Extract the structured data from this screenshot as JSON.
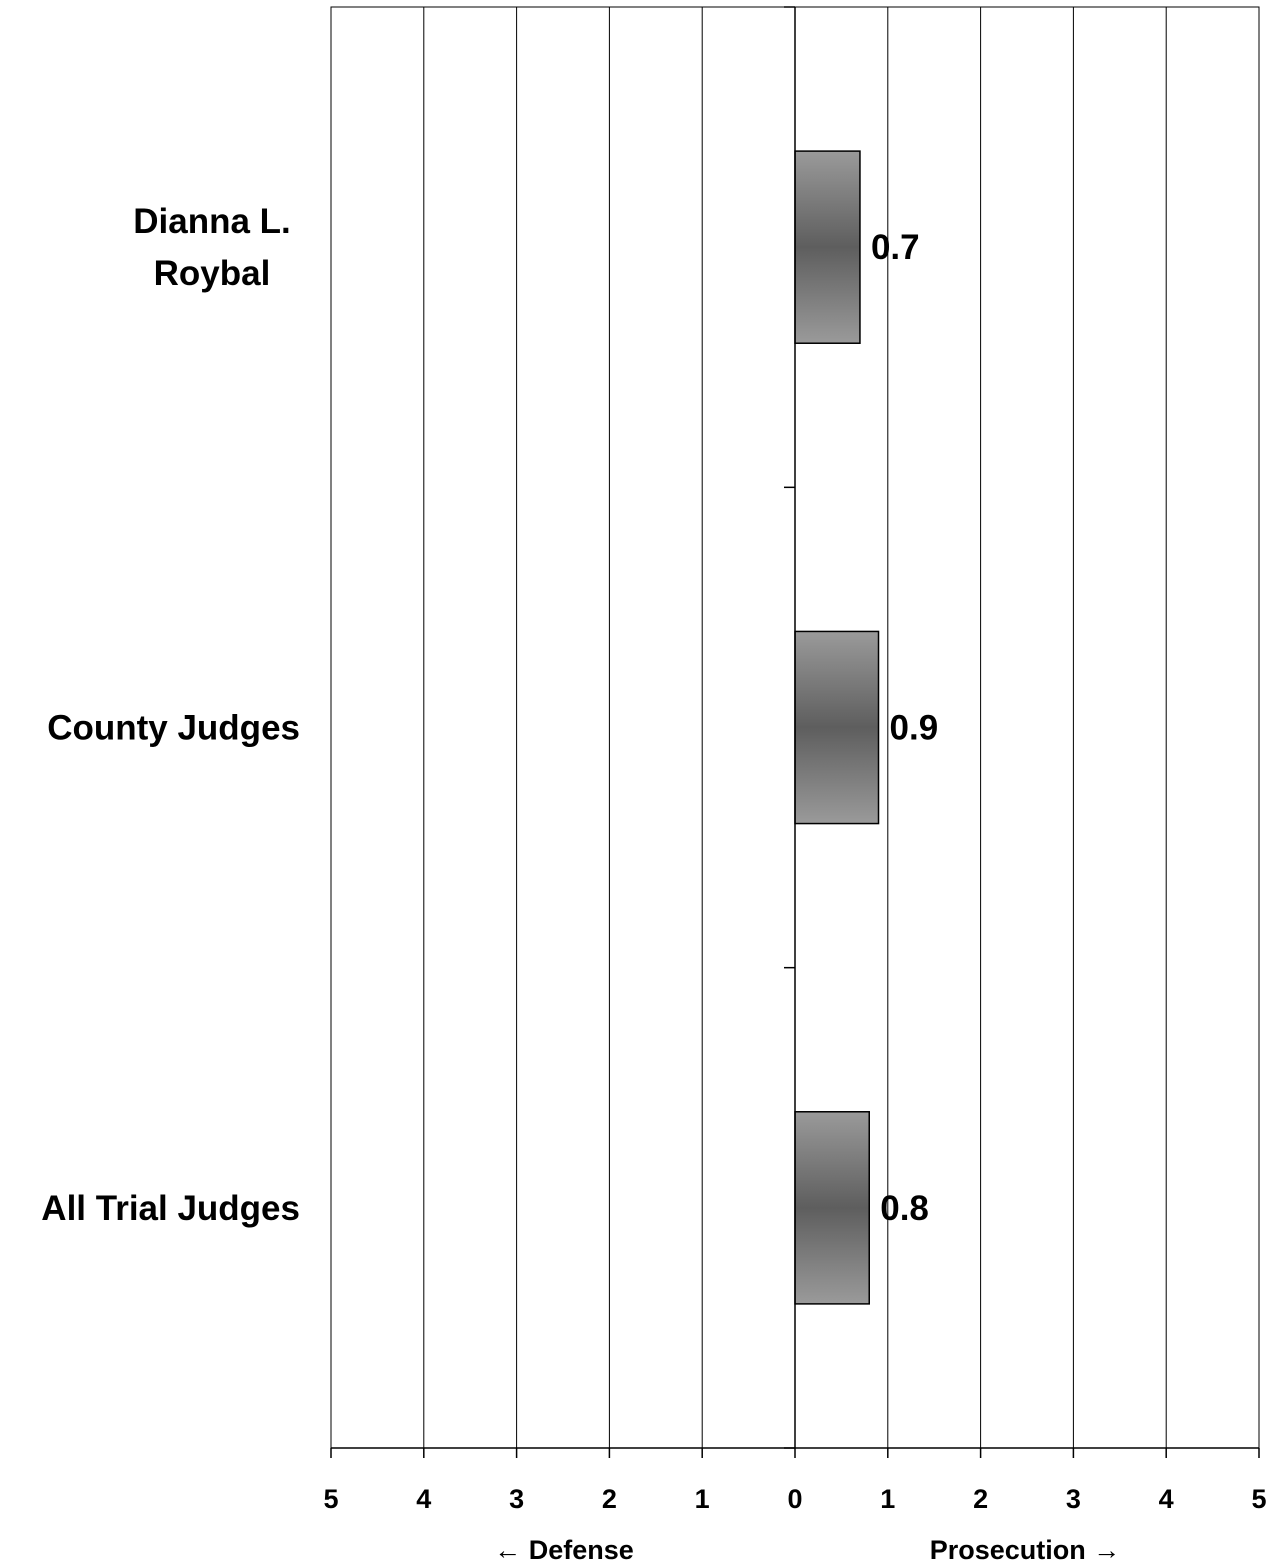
{
  "chart_data": {
    "type": "bar",
    "orientation": "horizontal",
    "categories": [
      [
        "Dianna L.",
        "Roybal"
      ],
      [
        "County Judges"
      ],
      [
        "All Trial Judges"
      ]
    ],
    "values": [
      0.7,
      0.9,
      0.8
    ],
    "data_labels": [
      "0.7",
      "0.9",
      "0.8"
    ],
    "xlim": [
      -5,
      5
    ],
    "x_tick_values": [
      -5,
      -4,
      -3,
      -2,
      -1,
      0,
      1,
      2,
      3,
      4,
      5
    ],
    "x_tick_labels": [
      "5",
      "4",
      "3",
      "2",
      "1",
      "0",
      "1",
      "2",
      "3",
      "4",
      "5"
    ],
    "axis_direction_labels": {
      "left": "← Defense",
      "right": "Prosecution →"
    },
    "grid": "vertical",
    "legend": "none",
    "title": "",
    "bar_color": "#5e5e5e",
    "bar_edge_color": "#9a9a9a"
  }
}
